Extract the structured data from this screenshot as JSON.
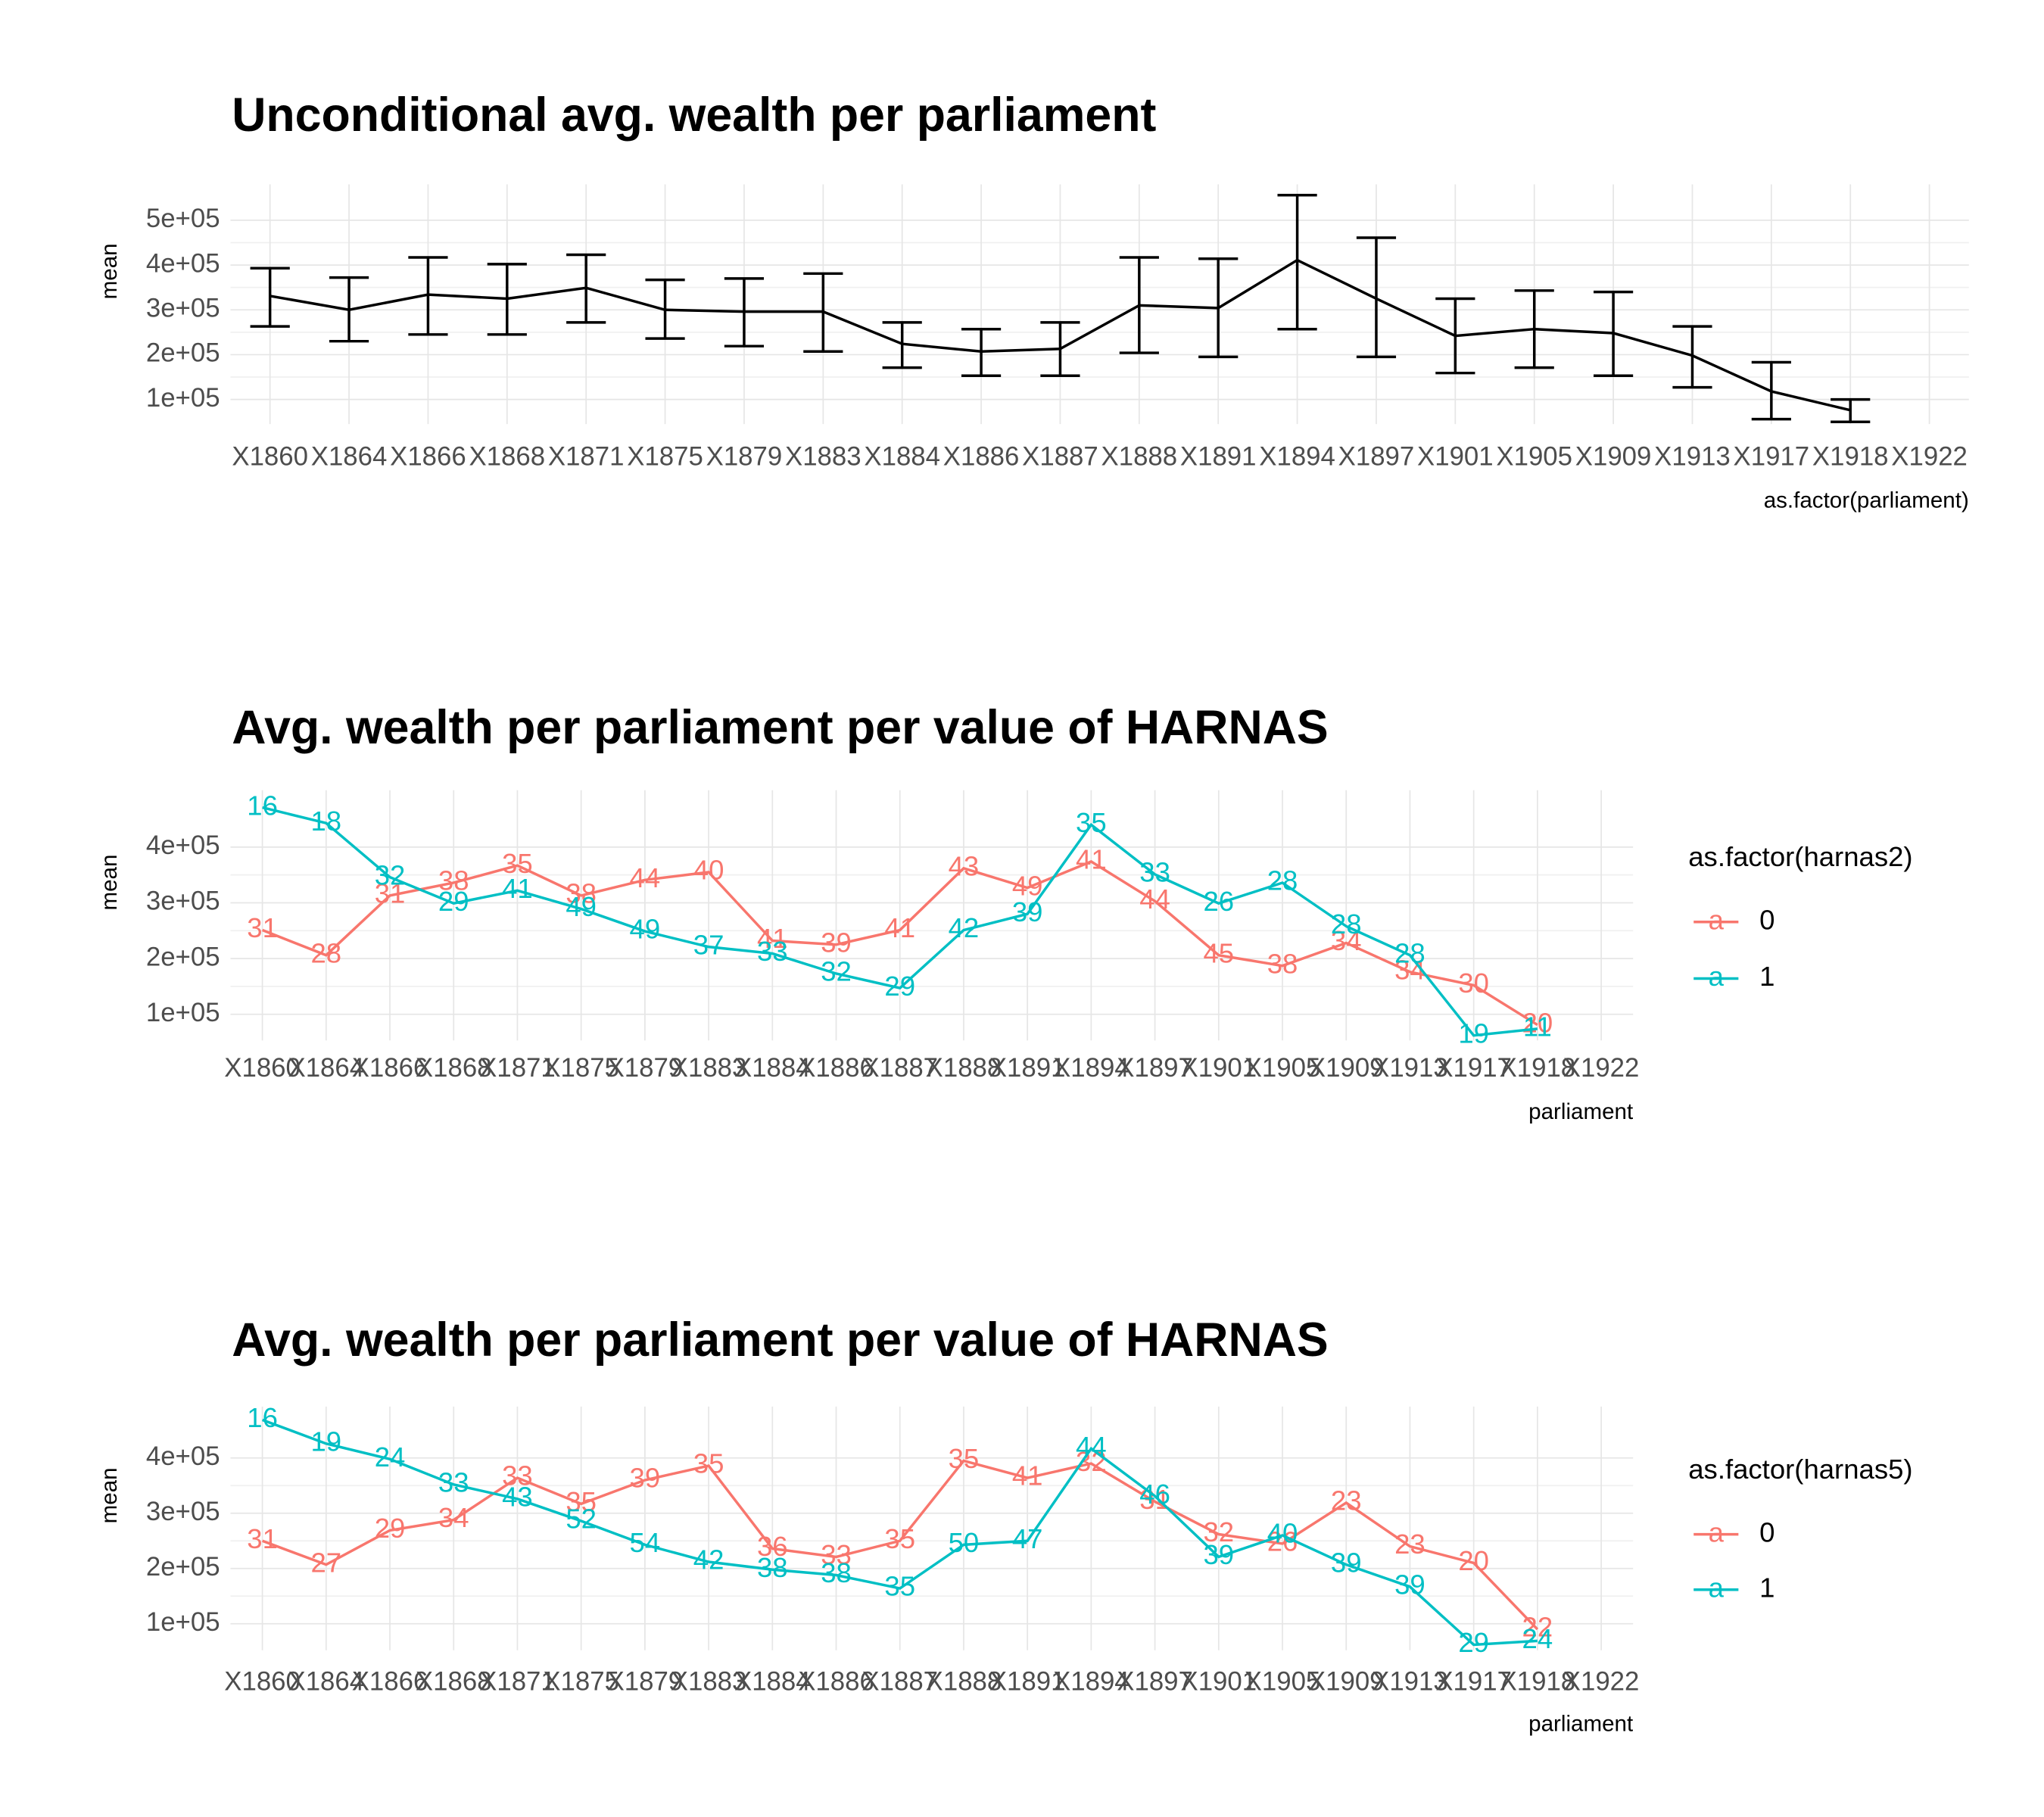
{
  "chart_data": [
    {
      "type": "errorbar",
      "title": "Unconditional avg. wealth per parliament",
      "x_label": "as.factor(parliament)",
      "y_label": "mean",
      "categories": [
        "X1860",
        "X1864",
        "X1866",
        "X1868",
        "X1871",
        "X1875",
        "X1879",
        "X1883",
        "X1884",
        "X1886",
        "X1887",
        "X1888",
        "X1891",
        "X1894",
        "X1897",
        "X1901",
        "X1905",
        "X1909",
        "X1913",
        "X1917",
        "X1918",
        "X1922"
      ],
      "values": [
        331000,
        300000,
        334000,
        325000,
        349000,
        300000,
        296000,
        296000,
        224000,
        207000,
        213000,
        310000,
        304000,
        411000,
        325000,
        242000,
        257000,
        248000,
        198000,
        118000,
        76000,
        null
      ],
      "lower": [
        263000,
        230000,
        245000,
        245000,
        272000,
        236000,
        219000,
        207000,
        171000,
        153000,
        153000,
        204000,
        195000,
        257000,
        195000,
        159000,
        171000,
        153000,
        127000,
        56000,
        50000,
        null
      ],
      "upper": [
        393000,
        372000,
        417000,
        402000,
        423000,
        367000,
        370000,
        381000,
        272000,
        257000,
        272000,
        417000,
        414000,
        556000,
        461000,
        325000,
        343000,
        340000,
        263000,
        183000,
        100000,
        null
      ],
      "color": "#000000",
      "ylim": [
        45000,
        580000
      ],
      "yticks": [
        {
          "value": 100000,
          "label": "1e+05"
        },
        {
          "value": 200000,
          "label": "2e+05"
        },
        {
          "value": 300000,
          "label": "3e+05"
        },
        {
          "value": 400000,
          "label": "4e+05"
        },
        {
          "value": 500000,
          "label": "5e+05"
        }
      ],
      "grid": true
    },
    {
      "type": "line",
      "title": "Avg. wealth per parliament per value of HARNAS",
      "x_label": "parliament",
      "y_label": "mean",
      "legend_title": "as.factor(harnas2)",
      "legend": "right",
      "categories": [
        "X1860",
        "X1864",
        "X1866",
        "X1868",
        "X1871",
        "X1875",
        "X1879",
        "X1883",
        "X1884",
        "X1886",
        "X1887",
        "X1888",
        "X1891",
        "X1894",
        "X1897",
        "X1901",
        "X1905",
        "X1909",
        "X1913",
        "X1917",
        "X1918",
        "X1922"
      ],
      "series": [
        {
          "name": "0",
          "color": "#F8766D",
          "values": [
            251000,
            206000,
            313000,
            336000,
            367000,
            313000,
            341000,
            355000,
            232000,
            225000,
            251000,
            362000,
            327000,
            374000,
            303000,
            206000,
            187000,
            228000,
            176000,
            152000,
            81000,
            null
          ],
          "counts": [
            31,
            28,
            31,
            38,
            35,
            38,
            44,
            40,
            41,
            39,
            41,
            43,
            49,
            41,
            44,
            45,
            38,
            34,
            34,
            30,
            20,
            null
          ]
        },
        {
          "name": "1",
          "color": "#00BFC4",
          "values": [
            471000,
            443000,
            346000,
            299000,
            322000,
            289000,
            249000,
            221000,
            209000,
            173000,
            147000,
            251000,
            280000,
            440000,
            351000,
            299000,
            336000,
            258000,
            206000,
            62000,
            74000,
            null
          ],
          "counts": [
            16,
            18,
            32,
            29,
            41,
            49,
            49,
            37,
            33,
            32,
            29,
            42,
            39,
            35,
            33,
            26,
            28,
            28,
            28,
            19,
            11,
            null
          ]
        }
      ],
      "ylim": [
        53000,
        502000
      ],
      "yticks": [
        {
          "value": 100000,
          "label": "1e+05"
        },
        {
          "value": 200000,
          "label": "2e+05"
        },
        {
          "value": 300000,
          "label": "3e+05"
        },
        {
          "value": 400000,
          "label": "4e+05"
        }
      ],
      "grid": true
    },
    {
      "type": "line",
      "title": "Avg. wealth per parliament per value of HARNAS",
      "x_label": "parliament",
      "y_label": "mean",
      "legend_title": "as.factor(harnas5)",
      "legend": "right",
      "categories": [
        "X1860",
        "X1864",
        "X1866",
        "X1868",
        "X1871",
        "X1875",
        "X1879",
        "X1883",
        "X1884",
        "X1886",
        "X1887",
        "X1888",
        "X1891",
        "X1894",
        "X1897",
        "X1901",
        "X1905",
        "X1909",
        "X1913",
        "X1917",
        "X1918",
        "X1922"
      ],
      "series": [
        {
          "name": "0",
          "color": "#F8766D",
          "values": [
            250000,
            207000,
            269000,
            288000,
            364000,
            317000,
            360000,
            386000,
            236000,
            221000,
            250000,
            395000,
            364000,
            390000,
            321000,
            262000,
            245000,
            319000,
            240000,
            210000,
            90000,
            null
          ],
          "counts": [
            31,
            27,
            29,
            34,
            33,
            35,
            39,
            35,
            36,
            33,
            35,
            35,
            41,
            32,
            31,
            32,
            26,
            23,
            23,
            20,
            22,
            null
          ]
        },
        {
          "name": "1",
          "color": "#00BFC4",
          "values": [
            469000,
            426000,
            398000,
            352000,
            326000,
            286000,
            243000,
            212000,
            198000,
            188000,
            164000,
            243000,
            250000,
            417000,
            331000,
            221000,
            260000,
            207000,
            167000,
            62000,
            69000,
            null
          ],
          "counts": [
            16,
            19,
            24,
            33,
            43,
            52,
            54,
            42,
            38,
            38,
            35,
            50,
            47,
            44,
            46,
            39,
            40,
            39,
            39,
            29,
            24,
            null
          ]
        }
      ],
      "ylim": [
        52000,
        493000
      ],
      "yticks": [
        {
          "value": 100000,
          "label": "1e+05"
        },
        {
          "value": 200000,
          "label": "2e+05"
        },
        {
          "value": 300000,
          "label": "3e+05"
        },
        {
          "value": 400000,
          "label": "4e+05"
        }
      ],
      "grid": true
    }
  ]
}
